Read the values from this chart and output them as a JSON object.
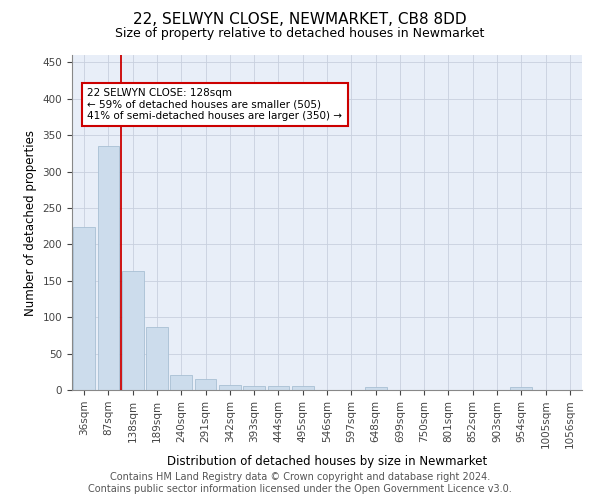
{
  "title": "22, SELWYN CLOSE, NEWMARKET, CB8 8DD",
  "subtitle": "Size of property relative to detached houses in Newmarket",
  "xlabel": "Distribution of detached houses by size in Newmarket",
  "ylabel": "Number of detached properties",
  "footer_line1": "Contains HM Land Registry data © Crown copyright and database right 2024.",
  "footer_line2": "Contains public sector information licensed under the Open Government Licence v3.0.",
  "bins": [
    "36sqm",
    "87sqm",
    "138sqm",
    "189sqm",
    "240sqm",
    "291sqm",
    "342sqm",
    "393sqm",
    "444sqm",
    "495sqm",
    "546sqm",
    "597sqm",
    "648sqm",
    "699sqm",
    "750sqm",
    "801sqm",
    "852sqm",
    "903sqm",
    "954sqm",
    "1005sqm",
    "1056sqm"
  ],
  "values": [
    224,
    335,
    164,
    87,
    20,
    15,
    7,
    6,
    5,
    5,
    0,
    0,
    4,
    0,
    0,
    0,
    0,
    0,
    4,
    0,
    0
  ],
  "bar_color": "#ccdcec",
  "bar_edge_color": "#a8c0d4",
  "grid_color": "#c8d0de",
  "bg_color": "#e8eef8",
  "property_line_color": "#cc0000",
  "property_line_x": 1.5,
  "property_label": "22 SELWYN CLOSE: 128sqm",
  "annotation_line1": "← 59% of detached houses are smaller (505)",
  "annotation_line2": "41% of semi-detached houses are larger (350) →",
  "annotation_box_color": "#ffffff",
  "annotation_box_edge": "#cc0000",
  "ylim": [
    0,
    460
  ],
  "yticks": [
    0,
    50,
    100,
    150,
    200,
    250,
    300,
    350,
    400,
    450
  ],
  "title_fontsize": 11,
  "subtitle_fontsize": 9,
  "axis_label_fontsize": 8.5,
  "tick_fontsize": 7.5,
  "footer_fontsize": 7
}
